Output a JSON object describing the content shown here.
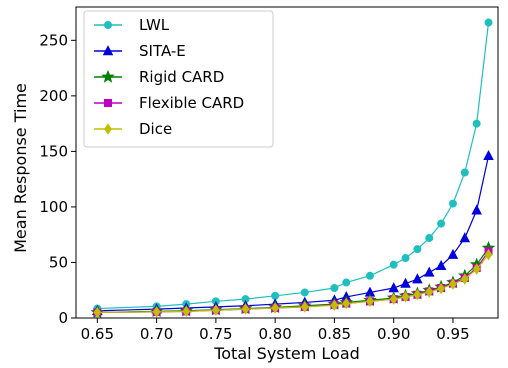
{
  "chart_data": {
    "type": "line",
    "xlabel": "Total System Load",
    "ylabel": "Mean Response Time",
    "xlim": [
      0.632,
      0.988
    ],
    "ylim": [
      0,
      280
    ],
    "xticks": [
      "0.65",
      "0.70",
      "0.75",
      "0.80",
      "0.85",
      "0.90",
      "0.95"
    ],
    "yticks": [
      "0",
      "50",
      "100",
      "150",
      "200",
      "250"
    ],
    "x": [
      0.65,
      0.7,
      0.725,
      0.75,
      0.775,
      0.8,
      0.825,
      0.85,
      0.86,
      0.88,
      0.9,
      0.91,
      0.92,
      0.93,
      0.94,
      0.95,
      0.96,
      0.97,
      0.98
    ],
    "legend_position": "upper-left",
    "grid": false,
    "series": [
      {
        "name": "LWL",
        "color": "#1fbfbf",
        "marker": "circle",
        "values": [
          8.5,
          10.5,
          12.5,
          15,
          17,
          20,
          23,
          27,
          32,
          38,
          48,
          54,
          62,
          72,
          85,
          103,
          131,
          175,
          266
        ]
      },
      {
        "name": "SITA-E",
        "color": "#0000dd",
        "marker": "triangle",
        "values": [
          6.5,
          8,
          9,
          10,
          11,
          12.5,
          14,
          16,
          19,
          23,
          27,
          31,
          35,
          41,
          47,
          57,
          72,
          97,
          146
        ]
      },
      {
        "name": "Rigid CARD",
        "color": "#008000",
        "marker": "star",
        "values": [
          5,
          6,
          6.5,
          7.5,
          8.5,
          9.5,
          11,
          12.5,
          14,
          16,
          18,
          20,
          22,
          25,
          28,
          32,
          38,
          48,
          63
        ]
      },
      {
        "name": "Flexible CARD",
        "color": "#bf00bf",
        "marker": "square",
        "values": [
          5,
          5.5,
          6,
          7,
          8,
          9,
          10,
          12,
          13,
          15,
          17,
          19,
          21,
          24,
          27,
          31,
          36,
          45,
          60
        ]
      },
      {
        "name": "Dice",
        "color": "#bfbf00",
        "marker": "diamond",
        "values": [
          5,
          5.5,
          6,
          7,
          8,
          9,
          10,
          11.5,
          13,
          15,
          17,
          19,
          21,
          23.5,
          26.5,
          30.5,
          35,
          44,
          57
        ]
      }
    ]
  }
}
